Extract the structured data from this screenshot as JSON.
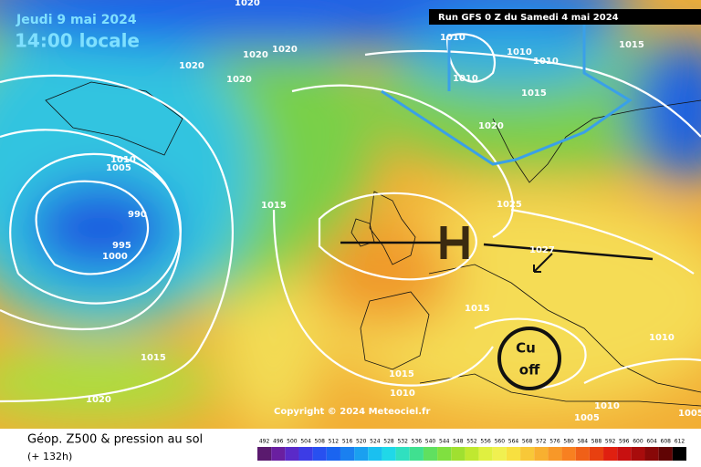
{
  "header": {
    "valid_date": "Jeudi 9 mai 2024",
    "local_time": "14:00 locale",
    "run": "Run GFS 0 Z du Samedi 4 mai 2024"
  },
  "copyright": "Copyright © 2024 Meteociel.fr",
  "footer": {
    "title": "Géop. Z500 & pression au sol",
    "lead": "(+ 132h)"
  },
  "isobar_labels": [
    1020,
    1020,
    1020,
    1020,
    1020,
    1010,
    1010,
    1010,
    1010,
    1015,
    1015,
    1020,
    1010,
    1005,
    990,
    995,
    1000,
    1015,
    1025,
    1015,
    1010,
    1015,
    1015,
    1010,
    1020,
    1010,
    1005,
    1005,
    1027
  ],
  "annotation": {
    "line1": "Cu",
    "line2": "off"
  },
  "scale": {
    "values": [
      492,
      496,
      500,
      504,
      508,
      512,
      516,
      520,
      524,
      528,
      532,
      536,
      540,
      544,
      548,
      552,
      556,
      560,
      564,
      568,
      572,
      576,
      580,
      584,
      588,
      592,
      596,
      600,
      604,
      608,
      612
    ],
    "colors": [
      "#5a1a6e",
      "#6a1fa0",
      "#5a2ac8",
      "#3c3ce6",
      "#2850f0",
      "#1a64f0",
      "#1a80f0",
      "#1aa0f0",
      "#1ac0f0",
      "#20d8e8",
      "#30e0c0",
      "#40e090",
      "#60e060",
      "#80e040",
      "#a0e030",
      "#c0e830",
      "#e0f040",
      "#f0f050",
      "#f8e040",
      "#f8c838",
      "#f8b030",
      "#f89828",
      "#f88020",
      "#f06018",
      "#e84010",
      "#e02010",
      "#c81010",
      "#a80c0c",
      "#880808",
      "#600404",
      "#000000"
    ]
  }
}
